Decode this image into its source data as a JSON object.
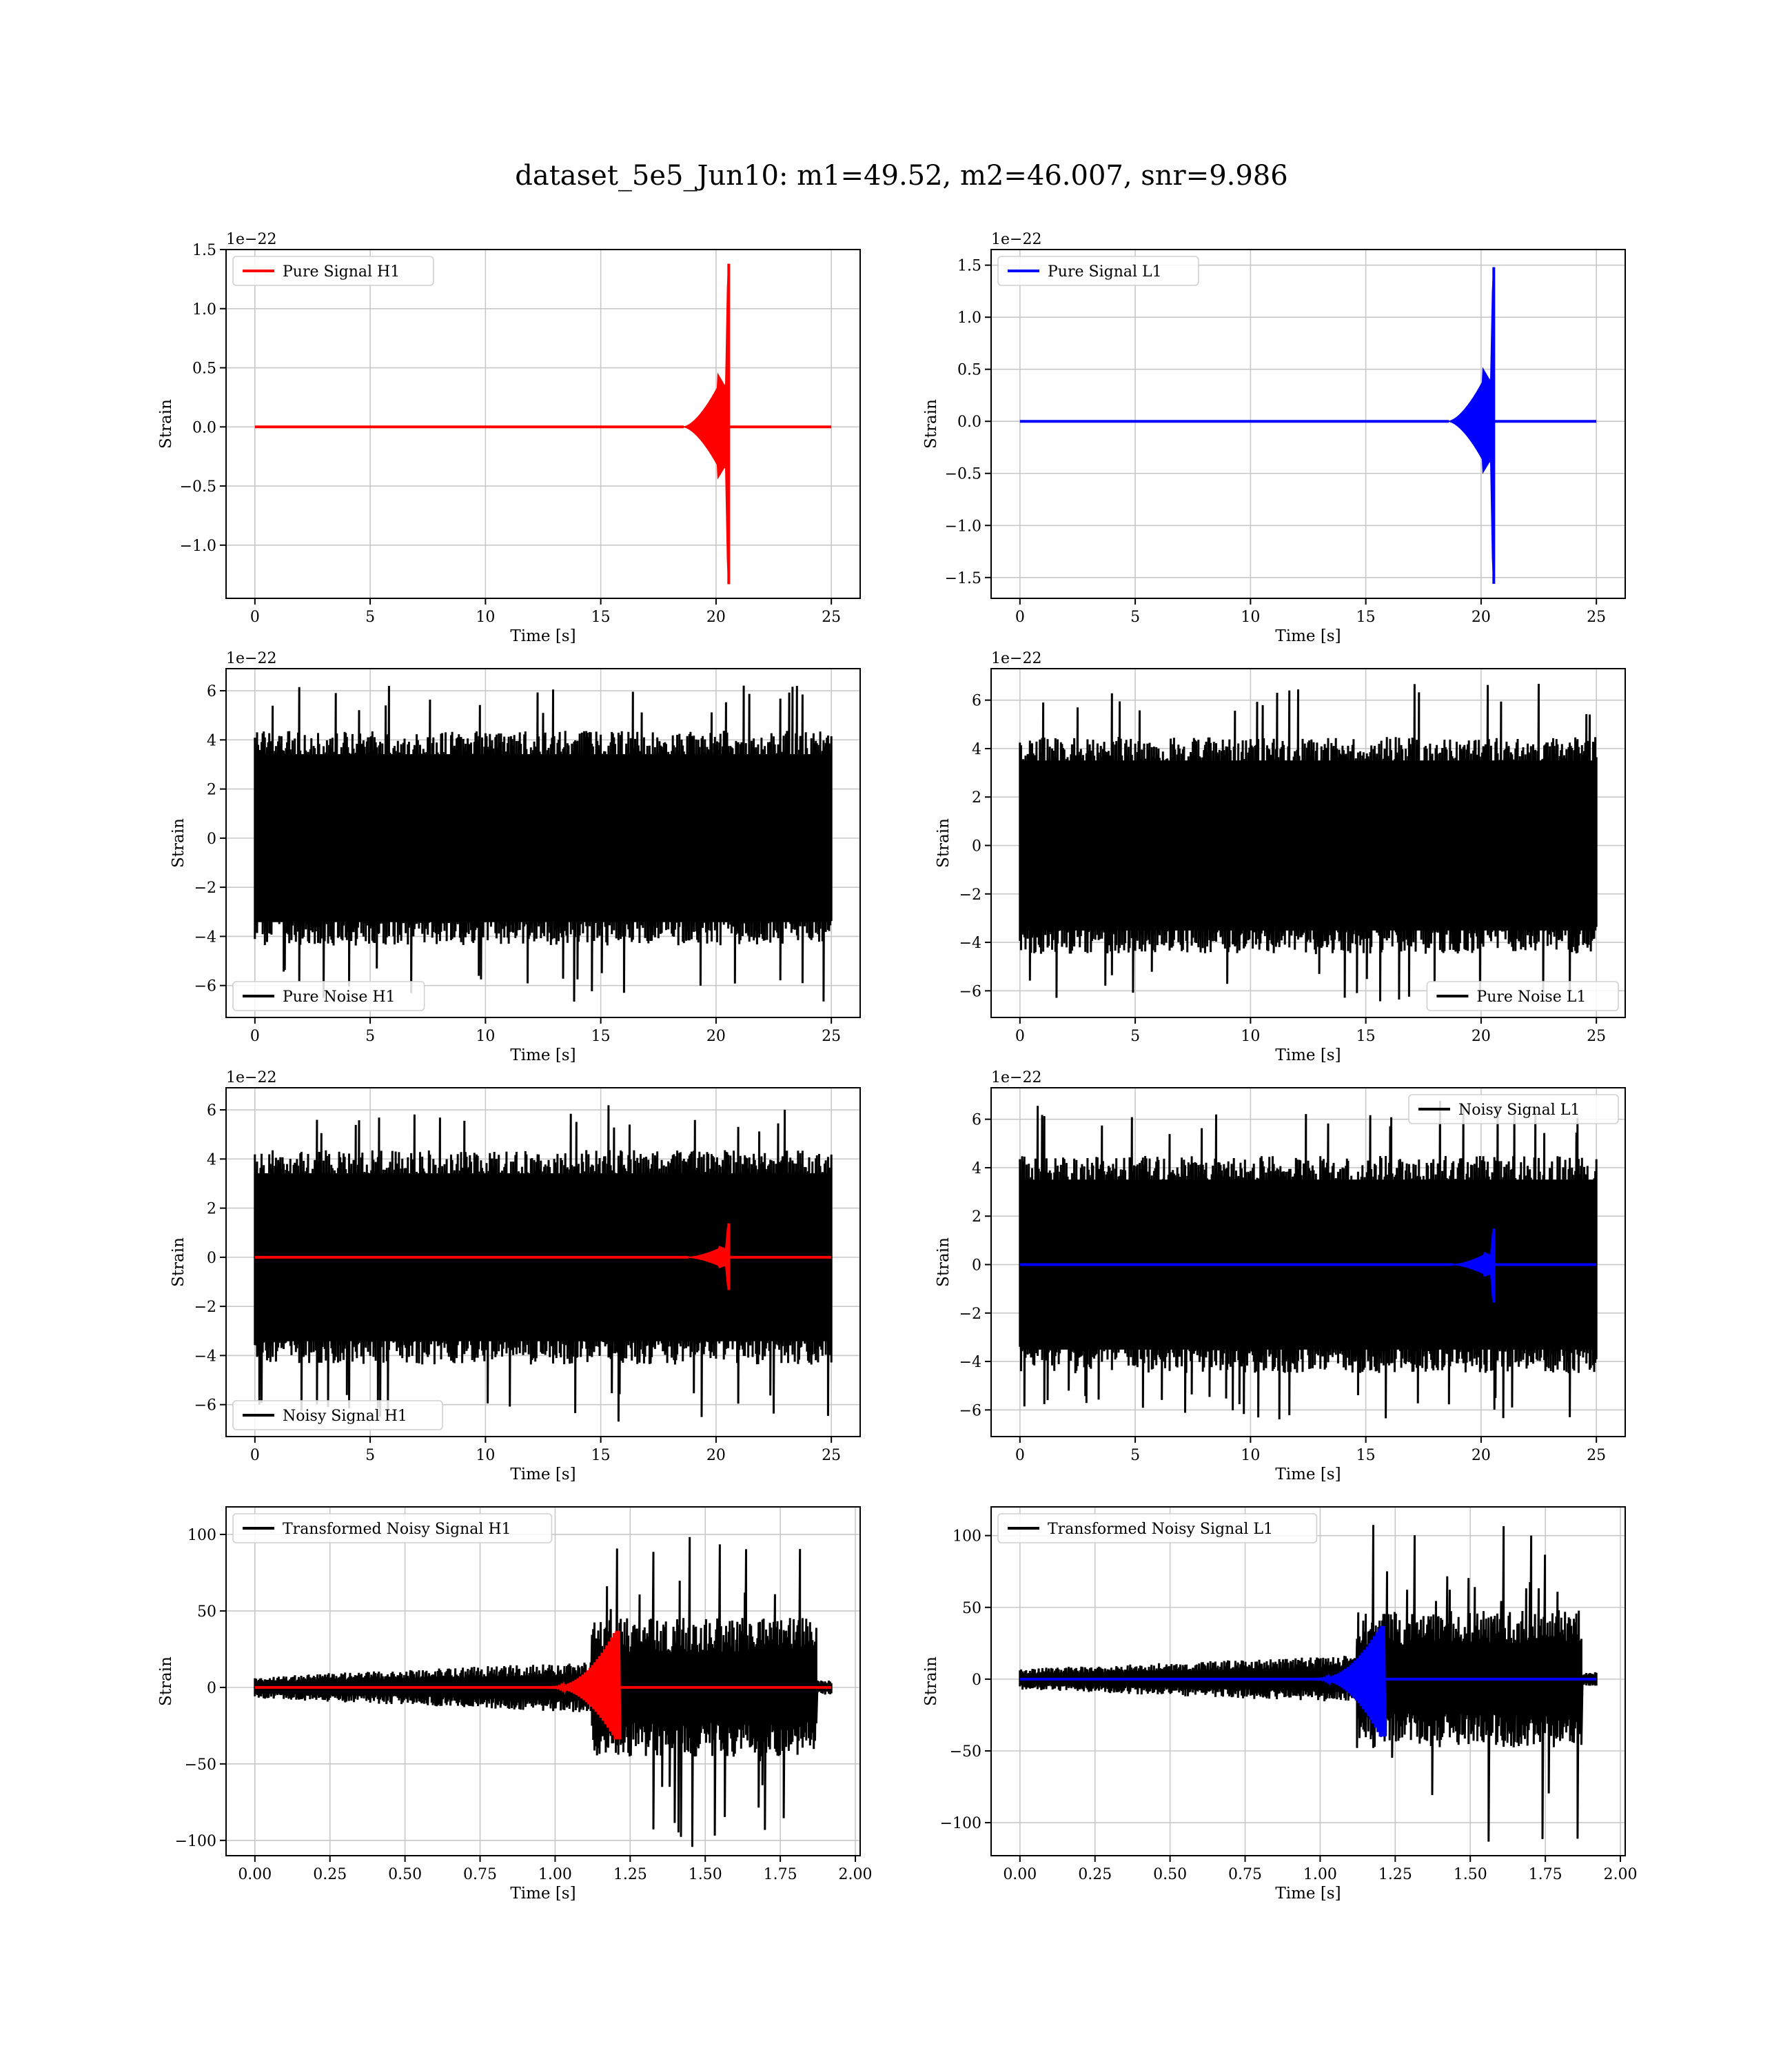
{
  "figure": {
    "suptitle": "dataset_5e5_Jun10: m1=49.52, m2=46.007, snr=9.986"
  },
  "chart_data": [
    {
      "id": "pure-signal-h1",
      "type": "line",
      "xlabel": "Time [s]",
      "ylabel": "Strain",
      "offset_label": "1e−22",
      "xlim": [
        -1.25,
        26.25
      ],
      "ylim": [
        -1.45,
        1.5
      ],
      "xticks": [
        0,
        5,
        10,
        15,
        20,
        25
      ],
      "xtick_labels": [
        "0",
        "5",
        "10",
        "15",
        "20",
        "25"
      ],
      "yticks": [
        -1.0,
        -0.5,
        0.0,
        0.5,
        1.0,
        1.5
      ],
      "ytick_labels": [
        "−1.0",
        "−0.5",
        "0.0",
        "0.5",
        "1.0",
        "1.5"
      ],
      "grid": true,
      "legend": "upper left",
      "series": [
        {
          "name": "Pure Signal H1",
          "color": "#ff0000",
          "kind": "chirp",
          "t_start": 0,
          "t_end": 25,
          "t_chirp_start": 18.6,
          "t_merge": 20.55,
          "plateau": 0.44,
          "peak_high": 1.38,
          "peak_low": -1.33,
          "ringdown": 0.12
        }
      ]
    },
    {
      "id": "pure-signal-l1",
      "type": "line",
      "xlabel": "Time [s]",
      "ylabel": "Strain",
      "offset_label": "1e−22",
      "xlim": [
        -1.25,
        26.25
      ],
      "ylim": [
        -1.7,
        1.65
      ],
      "xticks": [
        0,
        5,
        10,
        15,
        20,
        25
      ],
      "xtick_labels": [
        "0",
        "5",
        "10",
        "15",
        "20",
        "25"
      ],
      "yticks": [
        -1.5,
        -1.0,
        -0.5,
        0.0,
        0.5,
        1.0,
        1.5
      ],
      "ytick_labels": [
        "−1.5",
        "−1.0",
        "−0.5",
        "0.0",
        "0.5",
        "1.0",
        "1.5"
      ],
      "grid": true,
      "legend": "upper left",
      "series": [
        {
          "name": "Pure Signal L1",
          "color": "#0000ff",
          "kind": "chirp",
          "t_start": 0,
          "t_end": 25,
          "t_chirp_start": 18.6,
          "t_merge": 20.55,
          "plateau": 0.5,
          "peak_high": 1.48,
          "peak_low": -1.56,
          "ringdown": 0.12
        }
      ]
    },
    {
      "id": "pure-noise-h1",
      "type": "line",
      "xlabel": "Time [s]",
      "ylabel": "Strain",
      "offset_label": "1e−22",
      "xlim": [
        -1.25,
        26.25
      ],
      "ylim": [
        -7.3,
        6.9
      ],
      "xticks": [
        0,
        5,
        10,
        15,
        20,
        25
      ],
      "xtick_labels": [
        "0",
        "5",
        "10",
        "15",
        "20",
        "25"
      ],
      "yticks": [
        -6,
        -4,
        -2,
        0,
        2,
        4,
        6
      ],
      "ytick_labels": [
        "−6",
        "−4",
        "−2",
        "0",
        "2",
        "4",
        "6"
      ],
      "grid": true,
      "legend": "lower left",
      "series": [
        {
          "name": "Pure Noise H1",
          "color": "#000000",
          "kind": "noise",
          "t_start": 0,
          "t_end": 25,
          "band": 3.8,
          "max": 6.3,
          "min": -6.8
        }
      ]
    },
    {
      "id": "pure-noise-l1",
      "type": "line",
      "xlabel": "Time [s]",
      "ylabel": "Strain",
      "offset_label": "1e−22",
      "xlim": [
        -1.25,
        26.25
      ],
      "ylim": [
        -7.1,
        7.3
      ],
      "xticks": [
        0,
        5,
        10,
        15,
        20,
        25
      ],
      "xtick_labels": [
        "0",
        "5",
        "10",
        "15",
        "20",
        "25"
      ],
      "yticks": [
        -6,
        -4,
        -2,
        0,
        2,
        4,
        6
      ],
      "ytick_labels": [
        "−6",
        "−4",
        "−2",
        "0",
        "2",
        "4",
        "6"
      ],
      "grid": true,
      "legend": "lower right",
      "series": [
        {
          "name": "Pure Noise L1",
          "color": "#000000",
          "kind": "noise",
          "t_start": 0,
          "t_end": 25,
          "band": 3.9,
          "max": 6.8,
          "min": -6.5
        }
      ]
    },
    {
      "id": "noisy-signal-h1",
      "type": "line",
      "xlabel": "Time [s]",
      "ylabel": "Strain",
      "offset_label": "1e−22",
      "xlim": [
        -1.25,
        26.25
      ],
      "ylim": [
        -7.3,
        6.9
      ],
      "xticks": [
        0,
        5,
        10,
        15,
        20,
        25
      ],
      "xtick_labels": [
        "0",
        "5",
        "10",
        "15",
        "20",
        "25"
      ],
      "yticks": [
        -6,
        -4,
        -2,
        0,
        2,
        4,
        6
      ],
      "ytick_labels": [
        "−6",
        "−4",
        "−2",
        "0",
        "2",
        "4",
        "6"
      ],
      "grid": true,
      "legend": "lower left",
      "series": [
        {
          "name": "Noisy Signal H1",
          "color": "#000000",
          "kind": "noise",
          "t_start": 0,
          "t_end": 25,
          "band": 3.8,
          "max": 6.3,
          "min": -6.8
        },
        {
          "color": "#ff0000",
          "kind": "chirp",
          "t_start": 0,
          "t_end": 25,
          "t_chirp_start": 18.8,
          "t_merge": 20.55,
          "plateau": 0.44,
          "peak_high": 1.38,
          "peak_low": -1.33,
          "ringdown": 0.12
        }
      ]
    },
    {
      "id": "noisy-signal-l1",
      "type": "line",
      "xlabel": "Time [s]",
      "ylabel": "Strain",
      "offset_label": "1e−22",
      "xlim": [
        -1.25,
        26.25
      ],
      "ylim": [
        -7.1,
        7.3
      ],
      "xticks": [
        0,
        5,
        10,
        15,
        20,
        25
      ],
      "xtick_labels": [
        "0",
        "5",
        "10",
        "15",
        "20",
        "25"
      ],
      "yticks": [
        -6,
        -4,
        -2,
        0,
        2,
        4,
        6
      ],
      "ytick_labels": [
        "−6",
        "−4",
        "−2",
        "0",
        "2",
        "4",
        "6"
      ],
      "grid": true,
      "legend": "upper right",
      "series": [
        {
          "name": "Noisy Signal L1",
          "color": "#000000",
          "kind": "noise",
          "t_start": 0,
          "t_end": 25,
          "band": 3.9,
          "max": 6.8,
          "min": -6.5
        },
        {
          "color": "#0000ff",
          "kind": "chirp",
          "t_start": 0,
          "t_end": 25,
          "t_chirp_start": 18.8,
          "t_merge": 20.55,
          "plateau": 0.5,
          "peak_high": 1.48,
          "peak_low": -1.56,
          "ringdown": 0.12
        }
      ]
    },
    {
      "id": "transformed-noisy-signal-h1",
      "type": "line",
      "xlabel": "Time [s]",
      "ylabel": "Strain",
      "xlim": [
        -0.096,
        2.016
      ],
      "ylim": [
        -110,
        118
      ],
      "xticks": [
        0.0,
        0.25,
        0.5,
        0.75,
        1.0,
        1.25,
        1.5,
        1.75,
        2.0
      ],
      "xtick_labels": [
        "0.00",
        "0.25",
        "0.50",
        "0.75",
        "1.00",
        "1.25",
        "1.50",
        "1.75",
        "2.00"
      ],
      "yticks": [
        -100,
        -50,
        0,
        50,
        100
      ],
      "ytick_labels": [
        "−100",
        "−50",
        "0",
        "50",
        "100"
      ],
      "grid": true,
      "legend": "upper left",
      "series": [
        {
          "name": "Transformed Noisy Signal H1",
          "color": "#000000",
          "kind": "whitened",
          "t_start": 0,
          "t_end": 1.92,
          "t_jump": 1.12,
          "t_cut": 1.87,
          "band_early": 6,
          "band_late": 38,
          "max": 107,
          "min": -107
        },
        {
          "color": "#ff0000",
          "kind": "whitened-chirp",
          "t_start": 0,
          "t_end": 1.92,
          "t_chirp_start": 0.98,
          "t_merge": 1.2,
          "peak_high": 37,
          "peak_low": -34
        }
      ]
    },
    {
      "id": "transformed-noisy-signal-l1",
      "type": "line",
      "xlabel": "Time [s]",
      "ylabel": "Strain",
      "xlim": [
        -0.096,
        2.016
      ],
      "ylim": [
        -123,
        120
      ],
      "xticks": [
        0.0,
        0.25,
        0.5,
        0.75,
        1.0,
        1.25,
        1.5,
        1.75,
        2.0
      ],
      "xtick_labels": [
        "0.00",
        "0.25",
        "0.50",
        "0.75",
        "1.00",
        "1.25",
        "1.50",
        "1.75",
        "2.00"
      ],
      "yticks": [
        -100,
        -50,
        0,
        50,
        100
      ],
      "ytick_labels": [
        "−100",
        "−50",
        "0",
        "50",
        "100"
      ],
      "grid": true,
      "legend": "upper left",
      "series": [
        {
          "name": "Transformed Noisy Signal L1",
          "color": "#000000",
          "kind": "whitened",
          "t_start": 0,
          "t_end": 1.92,
          "t_jump": 1.12,
          "t_cut": 1.87,
          "band_early": 6,
          "band_late": 40,
          "max": 110,
          "min": -118
        },
        {
          "color": "#0000ff",
          "kind": "whitened-chirp",
          "t_start": 0,
          "t_end": 1.92,
          "t_chirp_start": 0.98,
          "t_merge": 1.2,
          "peak_high": 37,
          "peak_low": -40
        }
      ]
    }
  ]
}
